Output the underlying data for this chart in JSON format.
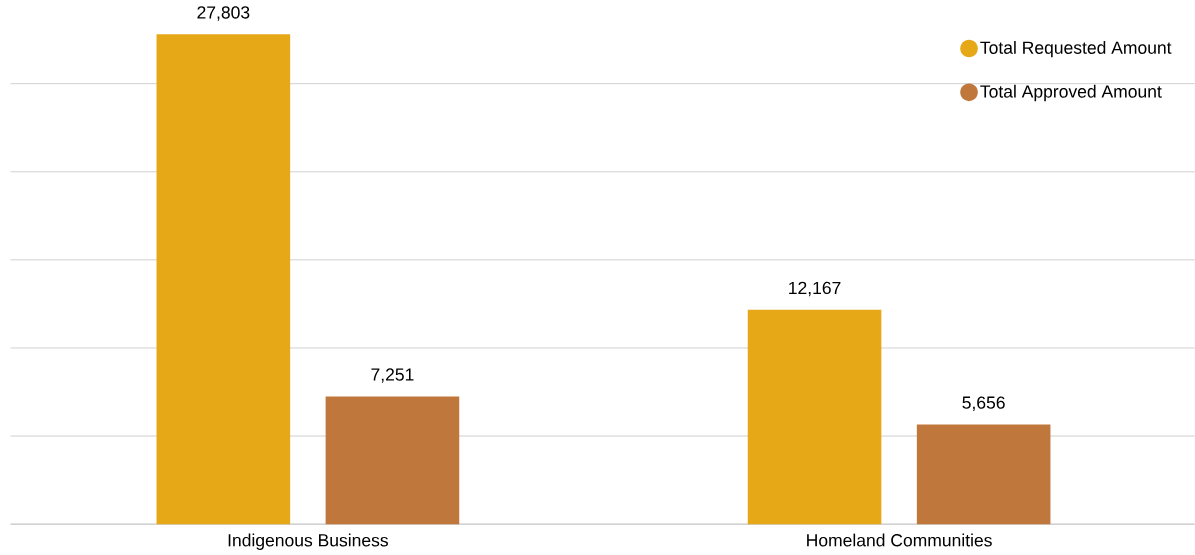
{
  "chart_data": {
    "type": "bar",
    "categories": [
      "Indigenous Business",
      "Homeland Communities"
    ],
    "series": [
      {
        "name": "Total Requested Amount",
        "color": "#e6a817",
        "values": [
          27803,
          12167
        ],
        "value_labels": [
          "27,803",
          "12,167"
        ]
      },
      {
        "name": "Total Approved Amount",
        "color": "#c0773b",
        "values": [
          7251,
          5656
        ],
        "value_labels": [
          "7,251",
          "5,656"
        ]
      }
    ],
    "grid": "y",
    "tick_labels": "x",
    "legend": "top right",
    "marker": "circle"
  }
}
